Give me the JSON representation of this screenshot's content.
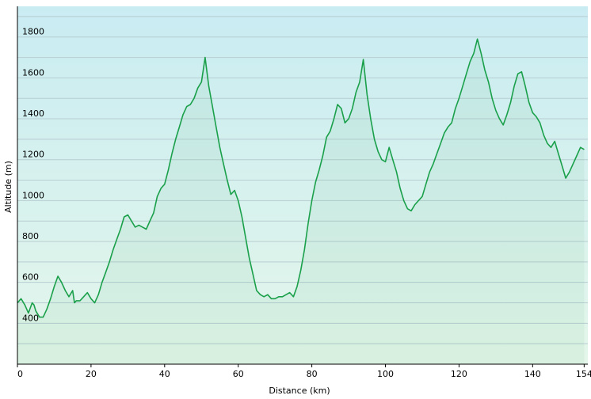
{
  "chart_data": {
    "type": "area",
    "title": "",
    "xlabel": "Distance  (km)",
    "ylabel": "Altitude (m)",
    "xlim": [
      0,
      155
    ],
    "ylim": [
      200,
      1950
    ],
    "x_ticks": [
      0,
      20,
      40,
      60,
      80,
      100,
      120,
      140,
      154
    ],
    "y_ticks": [
      400,
      600,
      800,
      1000,
      1200,
      1400,
      1600,
      1800
    ],
    "grid": true,
    "line_color": "#1aa04a",
    "fill_top_color": "#c9ecf2",
    "fill_bottom_color": "#e4f6ea",
    "series": [
      {
        "x": [
          0,
          1,
          2,
          3,
          4,
          4.5,
          5,
          6,
          7,
          8,
          9,
          10,
          11,
          12,
          13,
          14,
          15,
          15.5,
          16,
          17,
          18,
          19,
          20,
          21,
          22,
          23,
          24,
          25,
          26,
          27,
          28,
          29,
          30,
          31,
          32,
          33,
          34,
          35,
          36,
          37,
          38,
          39,
          40,
          41,
          42,
          43,
          44,
          45,
          46,
          47,
          48,
          49,
          50,
          51,
          52,
          53,
          54,
          55,
          56,
          57,
          58,
          59,
          60,
          61,
          62,
          63,
          64,
          65,
          66,
          67,
          68,
          69,
          70,
          71,
          72,
          73,
          74,
          75,
          76,
          77,
          78,
          79,
          80,
          81,
          82,
          83,
          84,
          85,
          86,
          87,
          88,
          89,
          90,
          91,
          92,
          93,
          94,
          95,
          96,
          97,
          98,
          99,
          100,
          101,
          102,
          103,
          104,
          105,
          106,
          107,
          108,
          109,
          110,
          111,
          112,
          113,
          114,
          115,
          116,
          117,
          118,
          119,
          120,
          121,
          122,
          123,
          124,
          125,
          126,
          127,
          128,
          129,
          130,
          131,
          132,
          133,
          134,
          135,
          136,
          137,
          138,
          139,
          140,
          141,
          142,
          143,
          144,
          145,
          146,
          147,
          148,
          149,
          150,
          151,
          152,
          153,
          154
        ],
        "y": [
          500,
          520,
          490,
          450,
          500,
          490,
          460,
          430,
          430,
          470,
          520,
          580,
          630,
          600,
          560,
          530,
          560,
          500,
          510,
          510,
          530,
          550,
          520,
          500,
          540,
          600,
          650,
          700,
          760,
          810,
          860,
          920,
          930,
          900,
          870,
          880,
          870,
          860,
          900,
          940,
          1020,
          1060,
          1080,
          1150,
          1230,
          1300,
          1360,
          1420,
          1460,
          1470,
          1500,
          1550,
          1580,
          1700,
          1560,
          1460,
          1360,
          1260,
          1180,
          1100,
          1030,
          1050,
          1000,
          920,
          820,
          720,
          640,
          560,
          540,
          530,
          540,
          520,
          520,
          530,
          530,
          540,
          550,
          530,
          580,
          660,
          760,
          890,
          1000,
          1090,
          1150,
          1220,
          1310,
          1340,
          1400,
          1470,
          1450,
          1380,
          1400,
          1450,
          1530,
          1580,
          1690,
          1520,
          1400,
          1300,
          1240,
          1200,
          1190,
          1260,
          1200,
          1140,
          1060,
          1000,
          960,
          950,
          980,
          1000,
          1020,
          1080,
          1140,
          1180,
          1230,
          1280,
          1330,
          1360,
          1380,
          1450,
          1500,
          1560,
          1620,
          1680,
          1720,
          1790,
          1720,
          1640,
          1580,
          1500,
          1440,
          1400,
          1370,
          1420,
          1480,
          1560,
          1620,
          1630,
          1560,
          1480,
          1430,
          1410,
          1380,
          1320,
          1280,
          1260,
          1290,
          1230,
          1170,
          1110,
          1140,
          1180,
          1220,
          1260,
          1250
        ]
      }
    ]
  }
}
